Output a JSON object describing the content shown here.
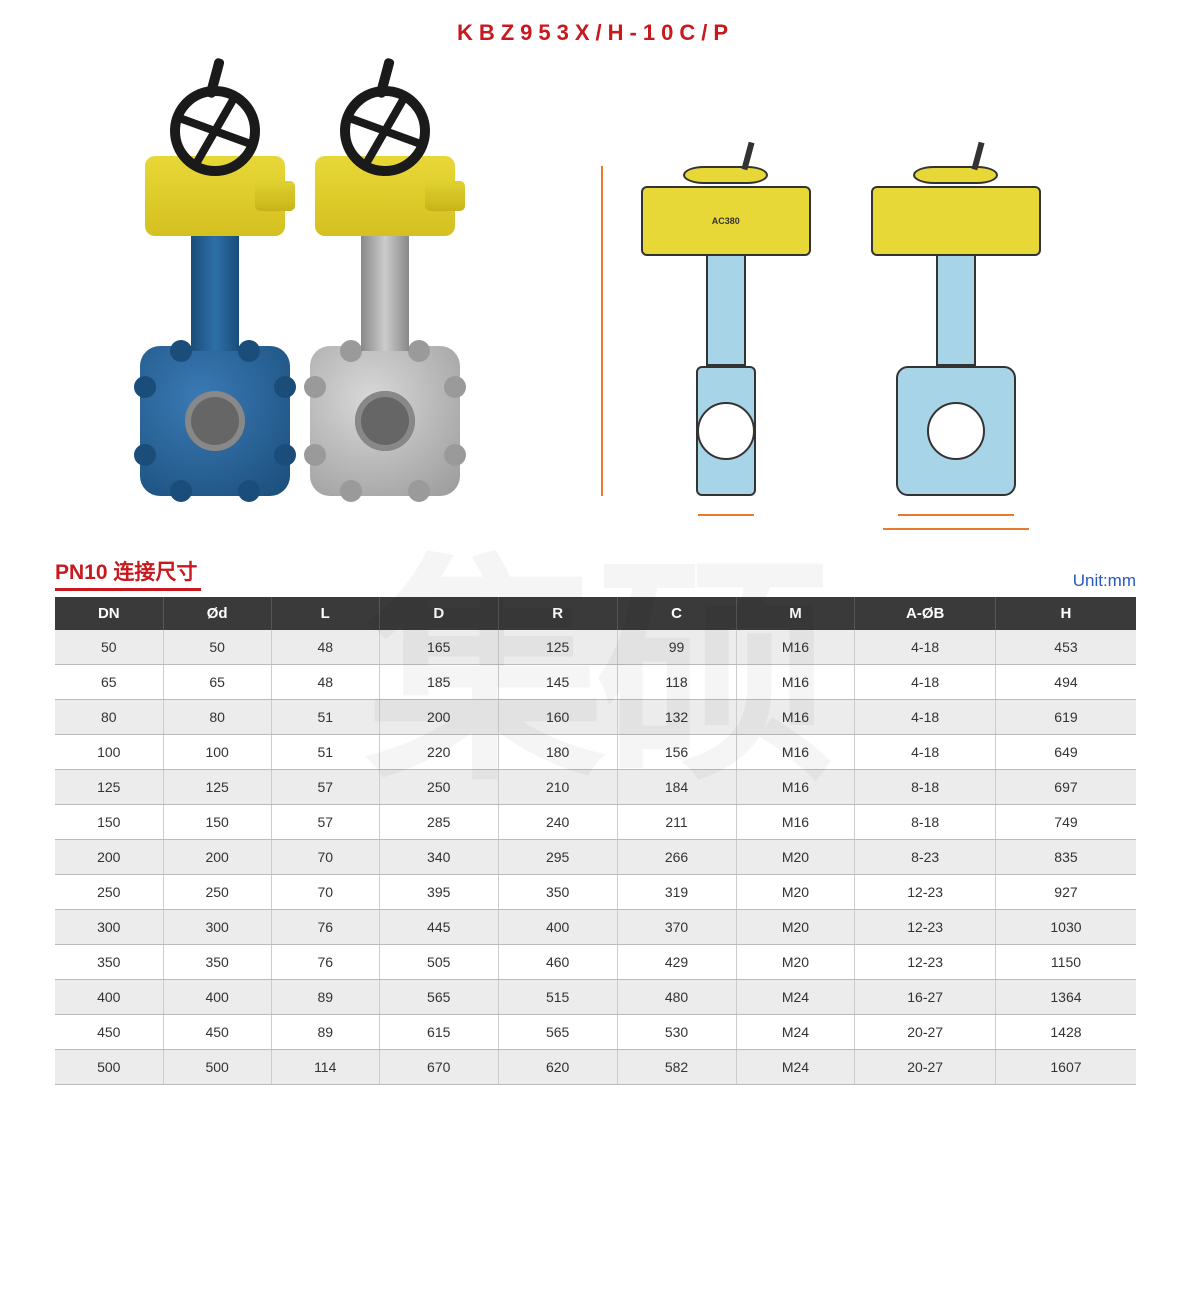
{
  "title": "KBZ953X/H-10C/P",
  "actuator_label": "AC380",
  "watermark": "集硕",
  "table": {
    "title": "PN10 连接尺寸",
    "unit": "Unit:mm",
    "columns": [
      "DN",
      "Ød",
      "L",
      "D",
      "R",
      "C",
      "M",
      "A-ØB",
      "H"
    ],
    "rows": [
      [
        "50",
        "50",
        "48",
        "165",
        "125",
        "99",
        "M16",
        "4-18",
        "453"
      ],
      [
        "65",
        "65",
        "48",
        "185",
        "145",
        "118",
        "M16",
        "4-18",
        "494"
      ],
      [
        "80",
        "80",
        "51",
        "200",
        "160",
        "132",
        "M16",
        "4-18",
        "619"
      ],
      [
        "100",
        "100",
        "51",
        "220",
        "180",
        "156",
        "M16",
        "4-18",
        "649"
      ],
      [
        "125",
        "125",
        "57",
        "250",
        "210",
        "184",
        "M16",
        "8-18",
        "697"
      ],
      [
        "150",
        "150",
        "57",
        "285",
        "240",
        "211",
        "M16",
        "8-18",
        "749"
      ],
      [
        "200",
        "200",
        "70",
        "340",
        "295",
        "266",
        "M20",
        "8-23",
        "835"
      ],
      [
        "250",
        "250",
        "70",
        "395",
        "350",
        "319",
        "M20",
        "12-23",
        "927"
      ],
      [
        "300",
        "300",
        "76",
        "445",
        "400",
        "370",
        "M20",
        "12-23",
        "1030"
      ],
      [
        "350",
        "350",
        "76",
        "505",
        "460",
        "429",
        "M20",
        "12-23",
        "1150"
      ],
      [
        "400",
        "400",
        "89",
        "565",
        "515",
        "480",
        "M24",
        "16-27",
        "1364"
      ],
      [
        "450",
        "450",
        "89",
        "615",
        "565",
        "530",
        "M24",
        "20-27",
        "1428"
      ],
      [
        "500",
        "500",
        "114",
        "670",
        "620",
        "582",
        "M24",
        "20-27",
        "1607"
      ]
    ],
    "col_widths": [
      "10%",
      "10%",
      "10%",
      "11%",
      "11%",
      "11%",
      "11%",
      "13%",
      "13%"
    ]
  },
  "colors": {
    "title": "#c8191f",
    "header_bg": "#3a3a3a",
    "row_odd": "#ececec",
    "row_even": "#ffffff",
    "unit": "#2458c4",
    "actuator": "#e8d837",
    "valve_blue": "#1a4d7a",
    "drawing_fill": "#a8d4e8",
    "dim_line": "#e67a2e"
  }
}
